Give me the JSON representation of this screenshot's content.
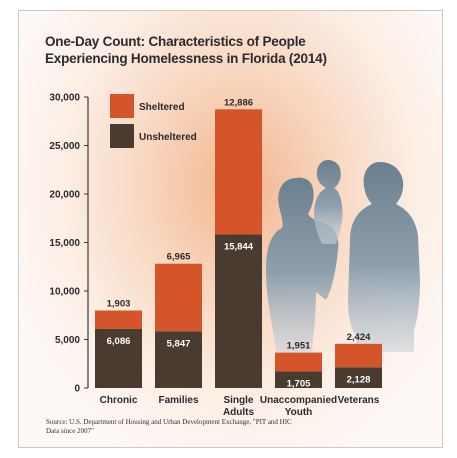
{
  "chart_data": {
    "type": "bar",
    "stacked": true,
    "title_lines": [
      "One-Day Count: Characteristics of People",
      "Experiencing Homelessness in Florida (2014)"
    ],
    "categories": [
      "Chronic",
      "Families",
      "Single Adults",
      "Unaccompanied Youth",
      "Veterans"
    ],
    "category_label_lines": [
      [
        "Chronic"
      ],
      [
        "Families"
      ],
      [
        "Single",
        "Adults"
      ],
      [
        "Unaccompanied",
        "Youth"
      ],
      [
        "Veterans"
      ]
    ],
    "series": [
      {
        "name": "Unsheltered",
        "color": "#4a3b30",
        "values": [
          6086,
          5847,
          15844,
          1705,
          2128
        ]
      },
      {
        "name": "Sheltered",
        "color": "#d4552a",
        "values": [
          1903,
          6965,
          12886,
          1951,
          2424
        ]
      }
    ],
    "data_labels": {
      "Unsheltered": [
        "6,086",
        "5,847",
        "15,844",
        "1,705",
        "2,128"
      ],
      "Sheltered": [
        "1,903",
        "6,965",
        "12,886",
        "1,951",
        "2,424"
      ]
    },
    "ylim": [
      0,
      30000
    ],
    "yticks": [
      0,
      5000,
      10000,
      15000,
      20000,
      25000,
      30000
    ],
    "ytick_labels": [
      "0",
      "5,000",
      "10,000",
      "15,000",
      "20,000",
      "25,000",
      "30,000"
    ],
    "legend": {
      "position": "top-left",
      "items": [
        "Sheltered",
        "Unsheltered"
      ]
    },
    "grid": false
  },
  "source_lines": [
    "Source: U.S. Department of Housing and Urban Development Exchange, \"PIT and HIC",
    "Data since 2007\""
  ]
}
